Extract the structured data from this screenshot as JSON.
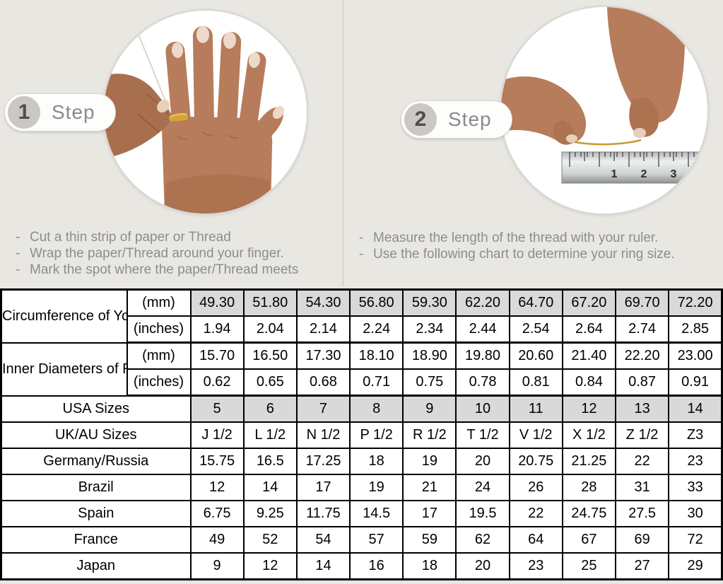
{
  "colors": {
    "background": "#e9e7e2",
    "table_shade": "#d9d9d9",
    "badge_circle": "#cbc8c3",
    "thread_gold": "#c59a33"
  },
  "bullet": "-",
  "steps": [
    {
      "number": "1",
      "label": "Step",
      "instructions": [
        "Cut a thin strip of paper or Thread",
        "Wrap the paper/Thread around your finger.",
        "Mark the spot where the paper/Thread meets"
      ]
    },
    {
      "number": "2",
      "label": "Step",
      "instructions": [
        "Measure the length of the thread with your ruler.",
        "Use the following chart to determine your ring size."
      ]
    }
  ],
  "ruler": {
    "marks": [
      "1",
      "2",
      "3"
    ]
  },
  "table": {
    "header_groups": [
      {
        "label": "Circumference of Your Finger",
        "rows": [
          {
            "unit": "(mm)",
            "shaded": true,
            "values": [
              "49.30",
              "51.80",
              "54.30",
              "56.80",
              "59.30",
              "62.20",
              "64.70",
              "67.20",
              "69.70",
              "72.20"
            ]
          },
          {
            "unit": "(inches)",
            "shaded": false,
            "values": [
              "1.94",
              "2.04",
              "2.14",
              "2.24",
              "2.34",
              "2.44",
              "2.54",
              "2.64",
              "2.74",
              "2.85"
            ]
          }
        ]
      },
      {
        "label": "Inner Diameters of Rings",
        "rows": [
          {
            "unit": "(mm)",
            "shaded": false,
            "values": [
              "15.70",
              "16.50",
              "17.30",
              "18.10",
              "18.90",
              "19.80",
              "20.60",
              "21.40",
              "22.20",
              "23.00"
            ]
          },
          {
            "unit": "(inches)",
            "shaded": false,
            "values": [
              "0.62",
              "0.65",
              "0.68",
              "0.71",
              "0.75",
              "0.78",
              "0.81",
              "0.84",
              "0.87",
              "0.91"
            ]
          }
        ]
      }
    ],
    "size_rows": [
      {
        "label": "USA Sizes",
        "shaded": true,
        "values": [
          "5",
          "6",
          "7",
          "8",
          "9",
          "10",
          "11",
          "12",
          "13",
          "14"
        ]
      },
      {
        "label": "UK/AU Sizes",
        "shaded": false,
        "values": [
          "J 1/2",
          "L 1/2",
          "N 1/2",
          "P 1/2",
          "R 1/2",
          "T 1/2",
          "V 1/2",
          "X 1/2",
          "Z 1/2",
          "Z3"
        ]
      },
      {
        "label": "Germany/Russia",
        "shaded": false,
        "values": [
          "15.75",
          "16.5",
          "17.25",
          "18",
          "19",
          "20",
          "20.75",
          "21.25",
          "22",
          "23"
        ]
      },
      {
        "label": "Brazil",
        "shaded": false,
        "values": [
          "12",
          "14",
          "17",
          "19",
          "21",
          "24",
          "26",
          "28",
          "31",
          "33"
        ]
      },
      {
        "label": "Spain",
        "shaded": false,
        "values": [
          "6.75",
          "9.25",
          "11.75",
          "14.5",
          "17",
          "19.5",
          "22",
          "24.75",
          "27.5",
          "30"
        ]
      },
      {
        "label": "France",
        "shaded": false,
        "values": [
          "49",
          "52",
          "54",
          "57",
          "59",
          "62",
          "64",
          "67",
          "69",
          "72"
        ]
      },
      {
        "label": "Japan",
        "shaded": false,
        "values": [
          "9",
          "12",
          "14",
          "16",
          "18",
          "20",
          "23",
          "25",
          "27",
          "29"
        ]
      }
    ]
  }
}
